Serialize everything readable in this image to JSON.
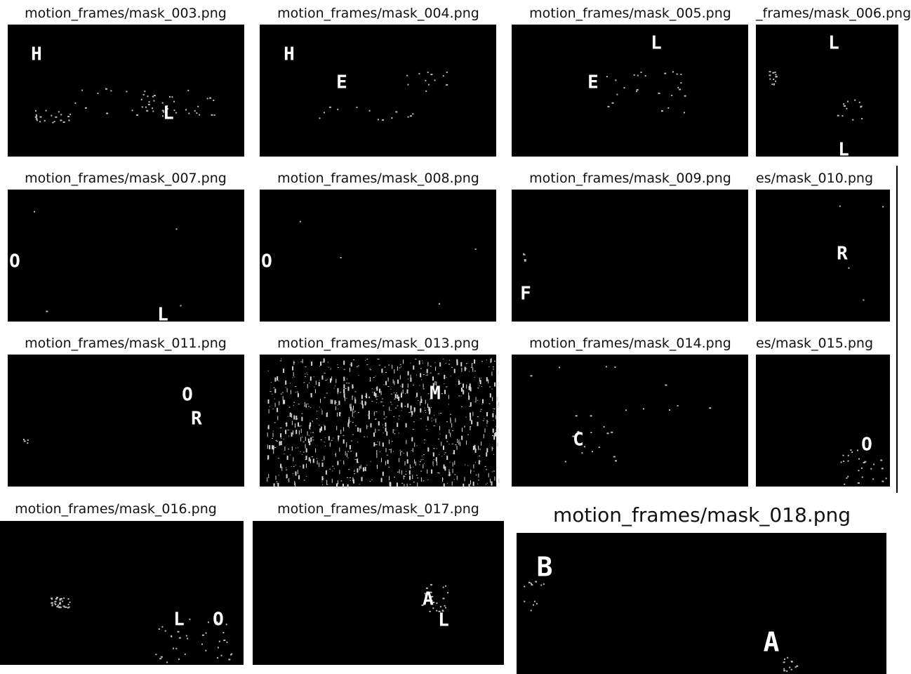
{
  "figure": {
    "background": "#ffffff",
    "panel_color": "#000000",
    "mark_color": "#ffffff",
    "panels": [
      {
        "title": "motion_frames/mask_003.png",
        "letters": [
          "H",
          "L"
        ],
        "noise": "medium",
        "noise_color": "#bdbdbd"
      },
      {
        "title": "motion_frames/mask_004.png",
        "letters": [
          "H",
          "E"
        ],
        "noise": "low",
        "noise_color": "#bdbdbd"
      },
      {
        "title": "motion_frames/mask_005.png",
        "letters": [
          "L",
          "E"
        ],
        "noise": "low",
        "noise_color": "#bdbdbd"
      },
      {
        "title": "_frames/mask_006.png",
        "letters": [
          "L",
          "L"
        ],
        "noise": "low",
        "noise_color": "#bdbdbd"
      },
      {
        "title": "motion_frames/mask_007.png",
        "letters": [
          "O",
          "L"
        ],
        "noise": "none",
        "noise_color": "#bdbdbd"
      },
      {
        "title": "motion_frames/mask_008.png",
        "letters": [
          "O"
        ],
        "noise": "none",
        "noise_color": "#bdbdbd"
      },
      {
        "title": "motion_frames/mask_009.png",
        "letters": [
          "F"
        ],
        "noise": "none",
        "noise_color": "#bdbdbd"
      },
      {
        "title": "es/mask_010.png",
        "letters": [
          "R"
        ],
        "noise": "none",
        "noise_color": "#bdbdbd"
      },
      {
        "title": "motion_frames/mask_011.png",
        "letters": [
          "O",
          "R"
        ],
        "noise": "none",
        "noise_color": "#bdbdbd"
      },
      {
        "title": "motion_frames/mask_013.png",
        "letters": [
          "M"
        ],
        "noise": "heavy",
        "noise_color": "#d6d6d6"
      },
      {
        "title": "motion_frames/mask_014.png",
        "letters": [
          "C"
        ],
        "noise": "low",
        "noise_color": "#bdbdbd"
      },
      {
        "title": "es/mask_015.png",
        "letters": [
          "O"
        ],
        "noise": "low",
        "noise_color": "#bdbdbd"
      },
      {
        "title": "motion_frames/mask_016.png",
        "letters": [
          "L",
          "O"
        ],
        "noise": "medium",
        "noise_color": "#bdbdbd"
      },
      {
        "title": "motion_frames/mask_017.png",
        "letters": [
          "A",
          "L"
        ],
        "noise": "low",
        "noise_color": "#bdbdbd"
      },
      {
        "title": "motion_frames/mask_018.png",
        "letters": [
          "B",
          "A"
        ],
        "noise": "low",
        "noise_color": "#bdbdbd"
      }
    ]
  }
}
